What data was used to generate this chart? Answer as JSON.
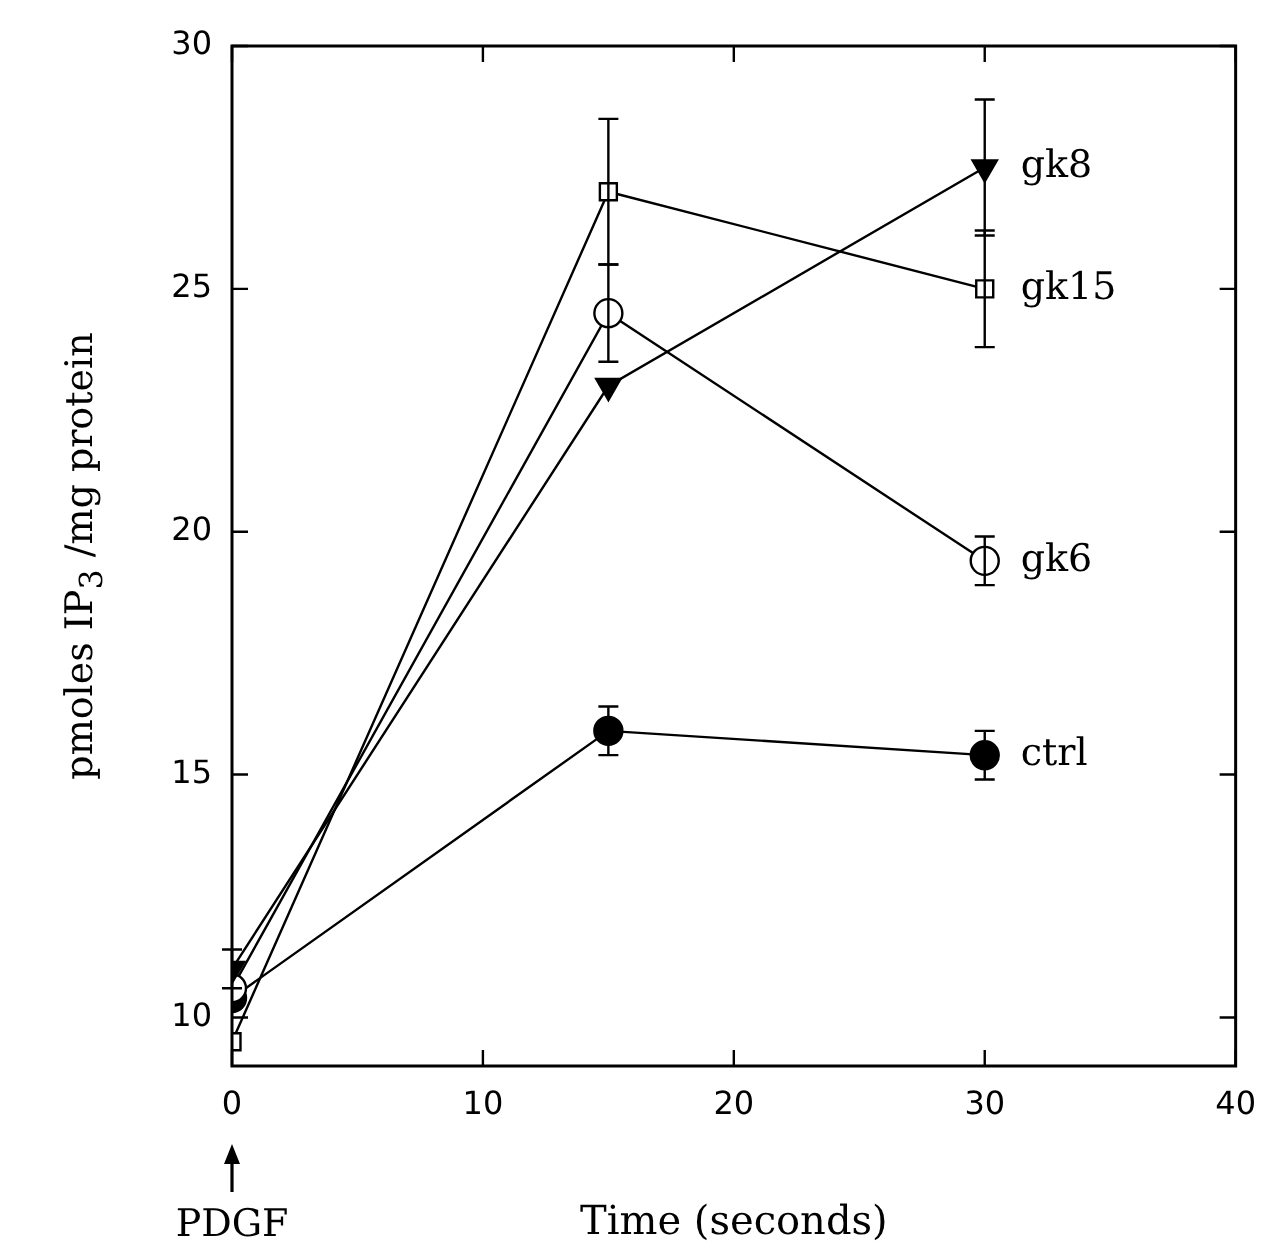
{
  "chart_data": {
    "type": "line",
    "xlabel": "Time (seconds)",
    "ylabel": "pmoles IP$_{3}$ /mg protein",
    "xlim": [
      0,
      40
    ],
    "xticks": [
      0,
      10,
      20,
      30,
      40
    ],
    "ylim": [
      9,
      30
    ],
    "yticks": [
      10,
      15,
      20,
      25,
      30
    ],
    "grid": false,
    "legend": false,
    "line_style": "solid",
    "annotations": [
      "PDGF"
    ],
    "series": [
      {
        "name": "gk8",
        "color": "#000000",
        "marker": "triangle",
        "x": [
          0,
          15,
          30
        ],
        "values": [
          11.0,
          23.0,
          27.5
        ],
        "errors": [
          0.4,
          null,
          1.4
        ]
      },
      {
        "name": "gk15",
        "color": "#000000",
        "marker": "square",
        "colors": [
          "#ffffff",
          "#ffffff",
          "#ffffff"
        ],
        "x": [
          0,
          15,
          30
        ],
        "values": [
          9.5,
          27.0,
          25.0
        ],
        "errors": [
          null,
          1.5,
          1.2
        ]
      },
      {
        "name": "gk6",
        "color": "#000000",
        "marker": "circle",
        "colors": [
          "#ffffff",
          "#ffffff",
          "#ffffff"
        ],
        "x": [
          0,
          15,
          30
        ],
        "values": [
          10.6,
          24.5,
          19.4
        ],
        "errors": [
          null,
          1.0,
          0.5
        ]
      },
      {
        "name": "ctrl",
        "color": "#000000",
        "marker": "circle",
        "x": [
          0,
          15,
          30
        ],
        "values": [
          10.4,
          15.9,
          15.4
        ],
        "errors": [
          null,
          0.5,
          0.5
        ]
      }
    ]
  }
}
